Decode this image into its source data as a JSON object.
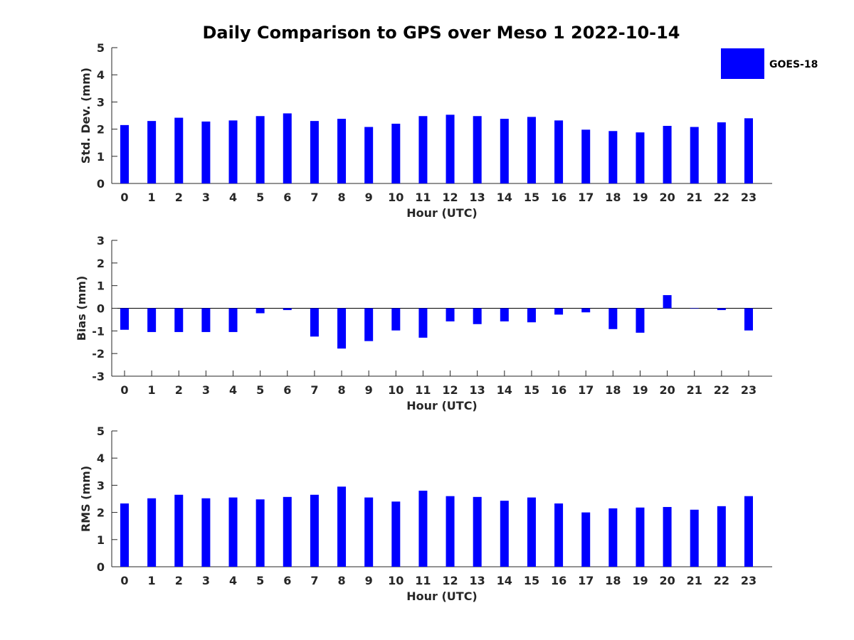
{
  "title": "Daily Comparison to GPS over Meso 1 2022-10-14",
  "legend": {
    "label": "GOES-18",
    "color": "#0000ff",
    "placement": "top-right"
  },
  "chart_data": [
    {
      "type": "bar",
      "xlabel": "Hour (UTC)",
      "ylabel": "Std. Dev. (mm)",
      "categories": [
        "0",
        "1",
        "2",
        "3",
        "4",
        "5",
        "6",
        "7",
        "8",
        "9",
        "10",
        "11",
        "12",
        "13",
        "14",
        "15",
        "16",
        "17",
        "18",
        "19",
        "20",
        "21",
        "22",
        "23"
      ],
      "yticks": [
        "0",
        "1",
        "2",
        "3",
        "4",
        "5"
      ],
      "ylim": [
        0,
        5
      ],
      "grid": false,
      "series": [
        {
          "name": "GOES-18",
          "values": [
            2.15,
            2.3,
            2.42,
            2.28,
            2.32,
            2.48,
            2.58,
            2.3,
            2.38,
            2.08,
            2.2,
            2.48,
            2.53,
            2.48,
            2.38,
            2.45,
            2.32,
            1.98,
            1.93,
            1.88,
            2.12,
            2.08,
            2.25,
            2.4
          ]
        }
      ]
    },
    {
      "type": "bar",
      "xlabel": "Hour (UTC)",
      "ylabel": "Bias (mm)",
      "categories": [
        "0",
        "1",
        "2",
        "3",
        "4",
        "5",
        "6",
        "7",
        "8",
        "9",
        "10",
        "11",
        "12",
        "13",
        "14",
        "15",
        "16",
        "17",
        "18",
        "19",
        "20",
        "21",
        "22",
        "23"
      ],
      "yticks": [
        "-3",
        "-2",
        "-1",
        "0",
        "1",
        "2",
        "3"
      ],
      "ylim": [
        -3,
        3
      ],
      "grid": false,
      "series": [
        {
          "name": "GOES-18",
          "values": [
            -0.95,
            -1.05,
            -1.05,
            -1.05,
            -1.05,
            -0.22,
            -0.08,
            -1.25,
            -1.78,
            -1.45,
            -0.98,
            -1.3,
            -0.58,
            -0.7,
            -0.58,
            -0.62,
            -0.28,
            -0.18,
            -0.92,
            -1.08,
            0.58,
            -0.02,
            -0.08,
            -0.98
          ]
        }
      ]
    },
    {
      "type": "bar",
      "xlabel": "Hour (UTC)",
      "ylabel": "RMS (mm)",
      "categories": [
        "0",
        "1",
        "2",
        "3",
        "4",
        "5",
        "6",
        "7",
        "8",
        "9",
        "10",
        "11",
        "12",
        "13",
        "14",
        "15",
        "16",
        "17",
        "18",
        "19",
        "20",
        "21",
        "22",
        "23"
      ],
      "yticks": [
        "0",
        "1",
        "2",
        "3",
        "4",
        "5"
      ],
      "ylim": [
        0,
        5
      ],
      "grid": false,
      "series": [
        {
          "name": "GOES-18",
          "values": [
            2.33,
            2.52,
            2.65,
            2.52,
            2.55,
            2.48,
            2.57,
            2.65,
            2.95,
            2.55,
            2.4,
            2.8,
            2.6,
            2.57,
            2.43,
            2.55,
            2.33,
            2.0,
            2.15,
            2.18,
            2.2,
            2.1,
            2.23,
            2.6
          ]
        }
      ]
    }
  ]
}
